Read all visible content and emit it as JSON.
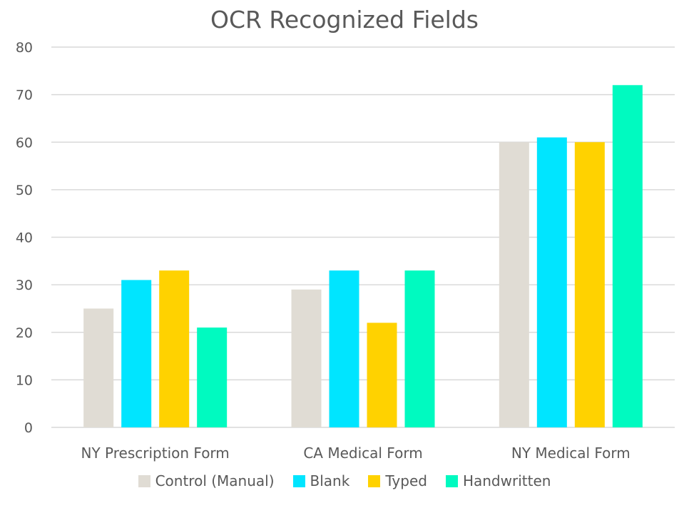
{
  "chart_data": {
    "type": "bar",
    "title": "OCR Recognized Fields",
    "xlabel": "",
    "ylabel": "",
    "ylim": [
      0,
      80
    ],
    "yticks": [
      0,
      10,
      20,
      30,
      40,
      50,
      60,
      70,
      80
    ],
    "grid": true,
    "legend_position": "bottom",
    "categories": [
      "NY Prescription Form",
      "CA Medical Form",
      "NY Medical Form"
    ],
    "series": [
      {
        "name": "Control (Manual)",
        "color": "#e0dcd4",
        "values": [
          25,
          29,
          60
        ]
      },
      {
        "name": "Blank",
        "color": "#00e5ff",
        "values": [
          31,
          33,
          61
        ]
      },
      {
        "name": "Typed",
        "color": "#ffd200",
        "values": [
          33,
          22,
          60
        ]
      },
      {
        "name": "Handwritten",
        "color": "#00fac0",
        "values": [
          21,
          33,
          72
        ]
      }
    ]
  }
}
